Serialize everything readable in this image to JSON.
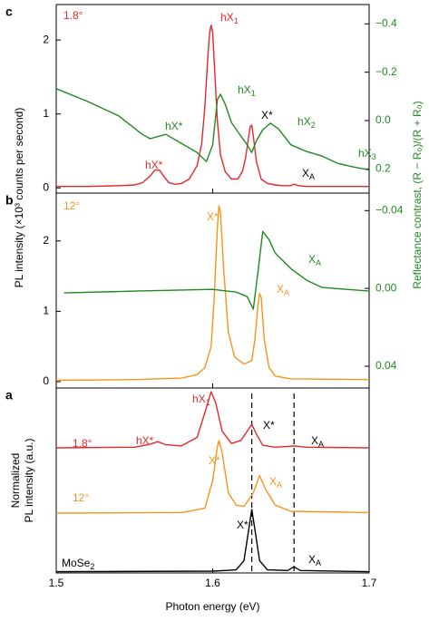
{
  "chart_data": [
    {
      "type": "line",
      "panel_label": "c",
      "xlim": [
        1.5,
        1.7
      ],
      "xticks": [
        1.5,
        1.6,
        1.7
      ],
      "ylim": [
        -0.07,
        2.48
      ],
      "yticks": [
        0,
        1,
        2
      ],
      "y2lim": [
        0.3,
        -0.48
      ],
      "y2ticks": [
        {
          "value": -0.4,
          "label": "−0.4"
        },
        {
          "value": -0.2,
          "label": "−0.2"
        },
        {
          "value": 0,
          "label": "0.0"
        },
        {
          "value": 0.2,
          "label": "0.2"
        }
      ],
      "series": [
        {
          "color": "#e8262a",
          "axis": "y",
          "x": [
            1.5,
            1.52,
            1.54,
            1.55,
            1.555,
            1.56,
            1.563,
            1.566,
            1.569,
            1.572,
            1.576,
            1.58,
            1.585,
            1.59,
            1.593,
            1.595,
            1.597,
            1.598,
            1.599,
            1.6,
            1.601,
            1.603,
            1.605,
            1.608,
            1.612,
            1.616,
            1.619,
            1.621,
            1.623,
            1.624,
            1.625,
            1.626,
            1.628,
            1.631,
            1.635,
            1.64,
            1.645,
            1.65,
            1.652,
            1.655,
            1.66,
            1.68,
            1.7
          ],
          "values": [
            0.02,
            0.02,
            0.03,
            0.04,
            0.07,
            0.16,
            0.24,
            0.24,
            0.15,
            0.07,
            0.05,
            0.06,
            0.12,
            0.3,
            0.6,
            1.1,
            1.8,
            2.1,
            2.2,
            2.1,
            1.7,
            0.9,
            0.45,
            0.22,
            0.12,
            0.12,
            0.22,
            0.4,
            0.7,
            0.83,
            0.85,
            0.7,
            0.35,
            0.12,
            0.06,
            0.04,
            0.03,
            0.03,
            0.05,
            0.03,
            0.02,
            0.02,
            0.02
          ]
        },
        {
          "color": "#1f8a1f",
          "axis": "y2",
          "x": [
            1.5,
            1.52,
            1.54,
            1.555,
            1.56,
            1.57,
            1.58,
            1.59,
            1.596,
            1.6,
            1.603,
            1.605,
            1.608,
            1.612,
            1.618,
            1.622,
            1.625,
            1.628,
            1.632,
            1.637,
            1.642,
            1.65,
            1.66,
            1.67,
            1.68,
            1.69,
            1.7
          ],
          "values": [
            -0.132,
            -0.079,
            -0.019,
            0.057,
            0.075,
            0.057,
            0.094,
            0.132,
            0.17,
            0.1,
            -0.087,
            -0.109,
            -0.068,
            0.008,
            0.064,
            0.1,
            0.132,
            0.083,
            0.038,
            0.011,
            0.034,
            0.1,
            0.128,
            0.147,
            0.177,
            0.192,
            0.204
          ]
        }
      ],
      "annotations": [
        {
          "text": "1.8°",
          "color": "#e8262a"
        },
        {
          "text": "hX",
          "sub": "1",
          "color": "#e8262a"
        },
        {
          "text": "hX",
          "sub": "1",
          "color": "#1f8a1f"
        },
        {
          "text": "hX*",
          "color": "#1f8a1f"
        },
        {
          "text": "X*",
          "color": "#000000"
        },
        {
          "text": "hX",
          "sub": "2",
          "color": "#1f8a1f"
        },
        {
          "text": "hX",
          "sub": "3",
          "color": "#1f8a1f"
        },
        {
          "text": "hX*",
          "color": "#e8262a"
        },
        {
          "text": "X",
          "sub": "A",
          "color": "#000000"
        }
      ]
    },
    {
      "type": "line",
      "panel_label": "b",
      "xlim": [
        1.5,
        1.7
      ],
      "xticks": [
        1.5,
        1.6,
        1.7
      ],
      "ylim": [
        -0.09,
        2.68
      ],
      "yticks": [
        0,
        1,
        2
      ],
      "y2lim": [
        0.0512,
        -0.049
      ],
      "y2ticks": [
        {
          "value": -0.04,
          "label": "−0.04"
        },
        {
          "value": 0,
          "label": "0.00"
        },
        {
          "value": 0.04,
          "label": "0.04"
        }
      ],
      "series": [
        {
          "color": "#f7941d",
          "axis": "y",
          "x": [
            1.5,
            1.55,
            1.58,
            1.59,
            1.595,
            1.599,
            1.601,
            1.603,
            1.604,
            1.605,
            1.607,
            1.61,
            1.614,
            1.62,
            1.625,
            1.627,
            1.629,
            1.63,
            1.631,
            1.633,
            1.636,
            1.64,
            1.65,
            1.7
          ],
          "values": [
            0.02,
            0.03,
            0.05,
            0.1,
            0.2,
            0.5,
            1.2,
            2.2,
            2.5,
            2.4,
            1.6,
            0.7,
            0.35,
            0.25,
            0.3,
            0.6,
            1.1,
            1.25,
            1.2,
            0.6,
            0.2,
            0.08,
            0.04,
            0.03
          ]
        },
        {
          "color": "#1f8a1f",
          "axis": "y2",
          "x": [
            1.505,
            1.55,
            1.6,
            1.615,
            1.622,
            1.626,
            1.629,
            1.632,
            1.636,
            1.64,
            1.65,
            1.66,
            1.67,
            1.7
          ],
          "values": [
            0.0023,
            0.0014,
            0.0005,
            0.0019,
            0.0042,
            0.0107,
            -0.0088,
            -0.0293,
            -0.0251,
            -0.0181,
            -0.0102,
            -0.0042,
            -0.0005,
            0.0014
          ]
        }
      ],
      "annotations": [
        {
          "text": "12°",
          "color": "#f7941d"
        },
        {
          "text": "X*",
          "color": "#f7941d"
        },
        {
          "text": "X",
          "sub": "A",
          "color": "#1f8a1f"
        },
        {
          "text": "X",
          "sub": "A",
          "color": "#f7941d"
        }
      ]
    },
    {
      "type": "line",
      "panel_label": "a",
      "xlabel": "Photon energy (eV)",
      "ylabel": [
        "Normalized",
        "PL intensity (a.u.)"
      ],
      "xlim": [
        1.5,
        1.7
      ],
      "xticks": [
        1.5,
        1.6,
        1.7
      ],
      "ylim": [
        0,
        3
      ],
      "vlines": [
        1.625,
        1.652
      ],
      "series": [
        {
          "color": "#e8262a",
          "axis": "y",
          "x": [
            1.5,
            1.55,
            1.56,
            1.565,
            1.57,
            1.58,
            1.59,
            1.595,
            1.599,
            1.602,
            1.606,
            1.612,
            1.618,
            1.622,
            1.625,
            1.628,
            1.632,
            1.64,
            1.652,
            1.66,
            1.7
          ],
          "values": [
            2.03,
            2.04,
            2.09,
            2.13,
            2.08,
            2.06,
            2.2,
            2.6,
            2.94,
            2.75,
            2.3,
            2.1,
            2.15,
            2.3,
            2.41,
            2.25,
            2.07,
            2.04,
            2.06,
            2.04,
            2.03
          ]
        },
        {
          "color": "#f7941d",
          "axis": "y",
          "x": [
            1.5,
            1.58,
            1.595,
            1.6,
            1.603,
            1.604,
            1.606,
            1.61,
            1.615,
            1.62,
            1.626,
            1.63,
            1.634,
            1.64,
            1.65,
            1.7
          ],
          "values": [
            0.97,
            0.98,
            1.05,
            1.5,
            2.05,
            2.15,
            1.95,
            1.3,
            1.1,
            1.08,
            1.3,
            1.58,
            1.35,
            1.1,
            1.0,
            0.98
          ]
        },
        {
          "color": "#000000",
          "axis": "y",
          "x": [
            1.5,
            1.6,
            1.615,
            1.62,
            1.623,
            1.625,
            1.627,
            1.63,
            1.635,
            1.648,
            1.652,
            1.656,
            1.7
          ],
          "values": [
            0.02,
            0.03,
            0.05,
            0.2,
            0.7,
            1.03,
            0.7,
            0.2,
            0.05,
            0.04,
            0.1,
            0.04,
            0.02
          ]
        }
      ],
      "annotations": [
        {
          "text": "hX",
          "sub": "1",
          "color": "#e8262a"
        },
        {
          "text": "hX*",
          "color": "#e8262a"
        },
        {
          "text": "X*",
          "color": "#000000"
        },
        {
          "text": "X",
          "sub": "A",
          "color": "#000000"
        },
        {
          "text": "1.8°",
          "color": "#e8262a"
        },
        {
          "text": "X*",
          "color": "#f7941d"
        },
        {
          "text": "X",
          "sub": "A",
          "color": "#f7941d"
        },
        {
          "text": "12°",
          "color": "#f7941d"
        },
        {
          "text": "X*",
          "color": "#000000"
        },
        {
          "text": "X",
          "sub": "A",
          "color": "#000000"
        },
        {
          "text": "MoSe",
          "sub": "2",
          "color": "#000000"
        }
      ]
    }
  ],
  "ylabel": "PL intensity (×10³ counts per second)",
  "y2label": "Reflectance contrast, (R − R₀)/(R + R₀)",
  "y2label_color": "#1f8a1f"
}
